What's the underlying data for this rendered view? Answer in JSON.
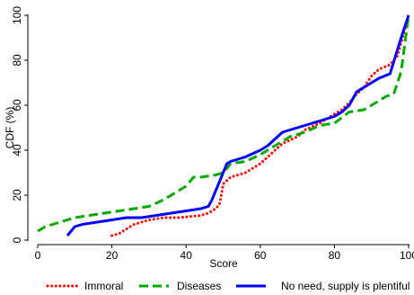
{
  "chart_data": {
    "type": "line",
    "title": "",
    "xlabel": "Score",
    "ylabel": "CDF (%)",
    "xlim": [
      0,
      100
    ],
    "ylim": [
      0,
      100
    ],
    "xticks": [
      0,
      20,
      40,
      60,
      80,
      100
    ],
    "yticks": [
      0,
      20,
      40,
      60,
      80,
      100
    ],
    "grid": false,
    "legend_position": "bottom",
    "series": [
      {
        "name": "Immoral",
        "color": "#ff0000",
        "style": "dotted",
        "x": [
          20,
          22,
          24,
          26,
          28,
          30,
          34,
          38,
          44,
          46,
          48,
          49,
          49.5,
          50,
          52,
          56,
          60,
          62,
          64,
          66,
          70,
          72,
          76,
          78,
          80,
          82,
          84,
          86,
          88,
          90,
          92,
          95,
          97,
          100
        ],
        "y": [
          2,
          3,
          5,
          7,
          8,
          9,
          10,
          10,
          11,
          12,
          14,
          16,
          20,
          25,
          28,
          30,
          34,
          37,
          40,
          43,
          46,
          49,
          52,
          54,
          56,
          58,
          61,
          65,
          68,
          73,
          76,
          78,
          82,
          100
        ]
      },
      {
        "name": "Diseases",
        "color": "#00aa00",
        "style": "dashed",
        "x": [
          0,
          2,
          4,
          6,
          8,
          10,
          14,
          18,
          22,
          26,
          30,
          34,
          38,
          40,
          42,
          44,
          48,
          50,
          52,
          56,
          60,
          64,
          68,
          72,
          76,
          80,
          84,
          88,
          90,
          94,
          96,
          98,
          100
        ],
        "y": [
          4,
          6,
          7,
          8,
          9,
          10,
          11,
          12,
          13,
          14,
          15,
          18,
          22,
          24,
          28,
          28,
          29,
          30,
          34,
          35,
          38,
          42,
          46,
          48,
          51,
          52,
          57,
          58,
          60,
          64,
          65,
          75,
          100
        ]
      },
      {
        "name": "No need, supply is plentiful",
        "color": "#0000ff",
        "style": "solid",
        "x": [
          8,
          10,
          12,
          16,
          20,
          24,
          28,
          32,
          36,
          40,
          44,
          46,
          47,
          48,
          49,
          50,
          51,
          52,
          56,
          60,
          62,
          64,
          66,
          68,
          70,
          72,
          74,
          76,
          78,
          80,
          82,
          84,
          86,
          88,
          90,
          92,
          95,
          98,
          100
        ],
        "y": [
          2,
          6,
          7,
          8,
          9,
          10,
          10,
          11,
          12,
          13,
          14,
          15,
          18,
          22,
          26,
          30,
          34,
          35,
          37,
          40,
          42,
          45,
          48,
          49,
          50,
          51,
          52,
          53,
          54,
          55,
          57,
          60,
          66,
          68,
          70,
          72,
          74,
          90,
          100
        ]
      }
    ]
  }
}
